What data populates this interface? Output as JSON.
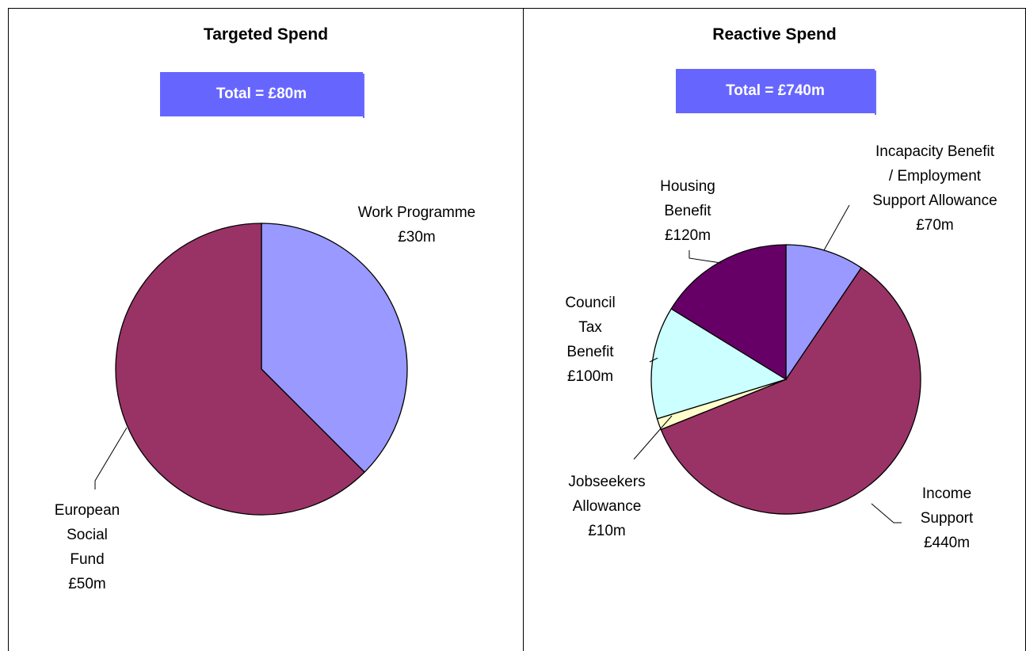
{
  "chart_data": [
    {
      "type": "pie",
      "title": "Targeted Spend",
      "total_label": "Total = £80m",
      "slices": [
        {
          "label_lines": [
            "Work Programme",
            "£30m"
          ],
          "value": 30,
          "color": "#9999ff"
        },
        {
          "label_lines": [
            "European",
            "Social",
            "Fund",
            "£50m"
          ],
          "value": 50,
          "color": "#993366"
        }
      ]
    },
    {
      "type": "pie",
      "title": "Reactive Spend",
      "total_label": "Total = £740m",
      "slices": [
        {
          "label_lines": [
            "Incapacity Benefit",
            "/ Employment",
            "Support Allowance",
            "£70m"
          ],
          "value": 70,
          "color": "#9999ff"
        },
        {
          "label_lines": [
            "Income",
            "Support",
            "£440m"
          ],
          "value": 440,
          "color": "#993366"
        },
        {
          "label_lines": [
            "Jobseekers",
            "Allowance",
            "£10m"
          ],
          "value": 10,
          "color": "#ffffcc"
        },
        {
          "label_lines": [
            "Council",
            "Tax",
            "Benefit",
            "£100m"
          ],
          "value": 100,
          "color": "#ccffff"
        },
        {
          "label_lines": [
            "Housing",
            "Benefit",
            "£120m"
          ],
          "value": 120,
          "color": "#660066"
        }
      ]
    }
  ]
}
